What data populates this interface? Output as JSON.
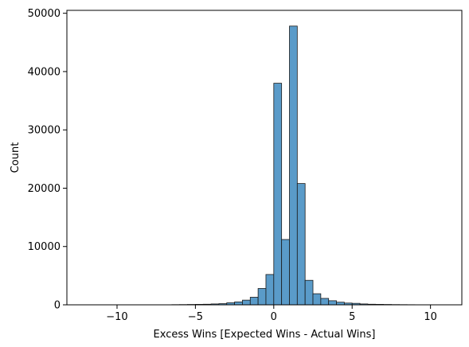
{
  "chart_data": {
    "type": "bar",
    "title": "",
    "xlabel": "Excess Wins [Expected Wins - Actual Wins]",
    "ylabel": "Count",
    "xlim": [
      -13.2,
      12.0
    ],
    "ylim": [
      0,
      50500
    ],
    "grid": false,
    "x_ticks": [
      -10,
      -5,
      0,
      5,
      10
    ],
    "x_tick_labels": [
      "−10",
      "−5",
      "0",
      "5",
      "10"
    ],
    "y_ticks": [
      0,
      10000,
      20000,
      30000,
      40000,
      50000
    ],
    "y_tick_labels": [
      "0",
      "10000",
      "20000",
      "30000",
      "40000",
      "50000"
    ],
    "bar_color": "#5a9bc9",
    "bar_edge_color": "#1a1a1a",
    "bins": [
      {
        "x0": -6.5,
        "x1": -6.0,
        "count": 30
      },
      {
        "x0": -6.0,
        "x1": -5.5,
        "count": 40
      },
      {
        "x0": -5.5,
        "x1": -5.0,
        "count": 60
      },
      {
        "x0": -5.0,
        "x1": -4.5,
        "count": 80
      },
      {
        "x0": -4.5,
        "x1": -4.0,
        "count": 100
      },
      {
        "x0": -4.0,
        "x1": -3.5,
        "count": 150
      },
      {
        "x0": -3.5,
        "x1": -3.0,
        "count": 200
      },
      {
        "x0": -3.0,
        "x1": -2.5,
        "count": 350
      },
      {
        "x0": -2.5,
        "x1": -2.0,
        "count": 500
      },
      {
        "x0": -2.0,
        "x1": -1.5,
        "count": 800
      },
      {
        "x0": -1.5,
        "x1": -1.0,
        "count": 1300
      },
      {
        "x0": -1.0,
        "x1": -0.5,
        "count": 2800
      },
      {
        "x0": -0.5,
        "x1": 0.0,
        "count": 5200
      },
      {
        "x0": 0.0,
        "x1": 0.5,
        "count": 38000
      },
      {
        "x0": 0.5,
        "x1": 1.0,
        "count": 11200
      },
      {
        "x0": 1.0,
        "x1": 1.5,
        "count": 47800
      },
      {
        "x0": 1.5,
        "x1": 2.0,
        "count": 20800
      },
      {
        "x0": 2.0,
        "x1": 2.5,
        "count": 4200
      },
      {
        "x0": 2.5,
        "x1": 3.0,
        "count": 1900
      },
      {
        "x0": 3.0,
        "x1": 3.5,
        "count": 1100
      },
      {
        "x0": 3.5,
        "x1": 4.0,
        "count": 700
      },
      {
        "x0": 4.0,
        "x1": 4.5,
        "count": 450
      },
      {
        "x0": 4.5,
        "x1": 5.0,
        "count": 300
      },
      {
        "x0": 5.0,
        "x1": 5.5,
        "count": 250
      },
      {
        "x0": 5.5,
        "x1": 6.0,
        "count": 150
      },
      {
        "x0": 6.0,
        "x1": 6.5,
        "count": 100
      },
      {
        "x0": 6.5,
        "x1": 7.0,
        "count": 80
      },
      {
        "x0": 7.0,
        "x1": 7.5,
        "count": 60
      },
      {
        "x0": 7.5,
        "x1": 8.0,
        "count": 40
      },
      {
        "x0": 8.0,
        "x1": 8.5,
        "count": 30
      },
      {
        "x0": 8.5,
        "x1": 9.0,
        "count": 20
      }
    ]
  }
}
